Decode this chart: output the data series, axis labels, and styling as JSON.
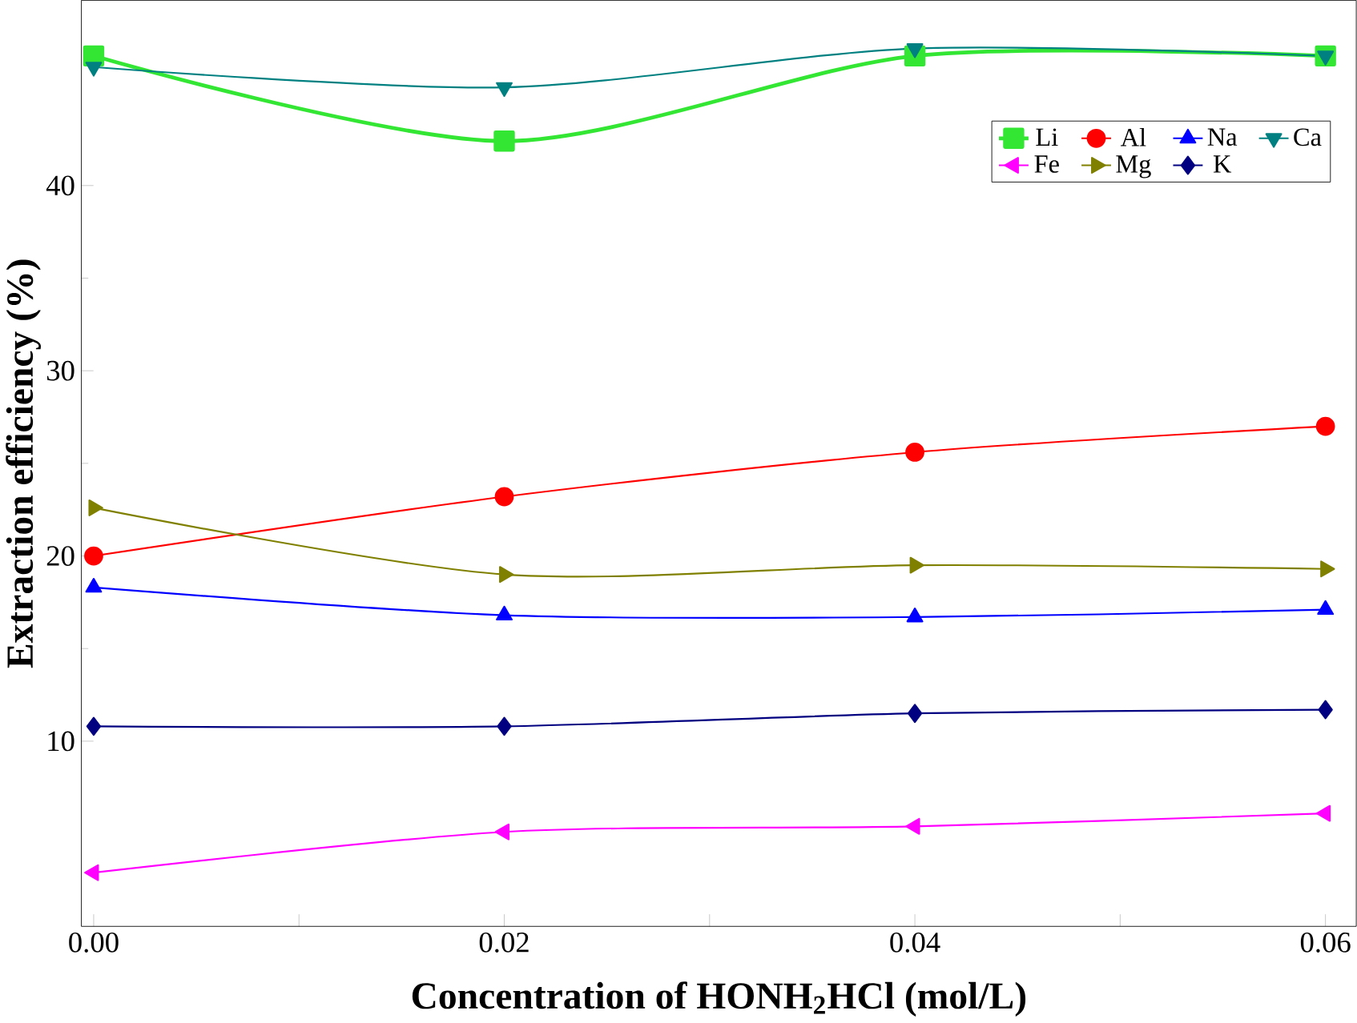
{
  "chart_data": {
    "type": "line",
    "xlabel": "Concentration of HONH$_{2}$HCl (mol/L)",
    "ylabel": "Extraction efficiency (%)",
    "x": [
      0,
      0.02,
      0.04,
      0.06
    ],
    "xlim": [
      -0.0006,
      0.0615
    ],
    "ylim": [
      0,
      50
    ],
    "xticks": [
      {
        "value": 0,
        "label": "0.00"
      },
      {
        "value": 0.01,
        "label": null
      },
      {
        "value": 0.02,
        "label": "0.02"
      },
      {
        "value": 0.03,
        "label": null
      },
      {
        "value": 0.04,
        "label": "0.04"
      },
      {
        "value": 0.05,
        "label": null
      },
      {
        "value": 0.06,
        "label": "0.06"
      }
    ],
    "yticks": [
      10,
      20,
      30,
      40
    ],
    "legend": "top right",
    "grid": false,
    "series": [
      {
        "name": "Li",
        "color": "#33e633",
        "marker": "square",
        "values": [
          47.0,
          42.4,
          47.0,
          47.0
        ]
      },
      {
        "name": "Al",
        "color": "#ff0000",
        "marker": "circle",
        "values": [
          20.0,
          23.2,
          25.6,
          27.0
        ]
      },
      {
        "name": "Na",
        "color": "#0000ff",
        "marker": "triangle",
        "values": [
          18.3,
          16.8,
          16.7,
          17.1
        ]
      },
      {
        "name": "Ca",
        "color": "#008080",
        "marker": "triangle-down",
        "values": [
          46.4,
          45.3,
          47.4,
          47.0
        ]
      },
      {
        "name": "Fe",
        "color": "#ff00ff",
        "marker": "triangle-left",
        "values": [
          2.9,
          5.1,
          5.4,
          6.1
        ]
      },
      {
        "name": "Mg",
        "color": "#808000",
        "marker": "triangle-right",
        "values": [
          22.6,
          19.0,
          19.5,
          19.3
        ]
      },
      {
        "name": "K",
        "color": "#000080",
        "marker": "diamond",
        "values": [
          10.8,
          10.8,
          11.5,
          11.7
        ]
      }
    ]
  }
}
